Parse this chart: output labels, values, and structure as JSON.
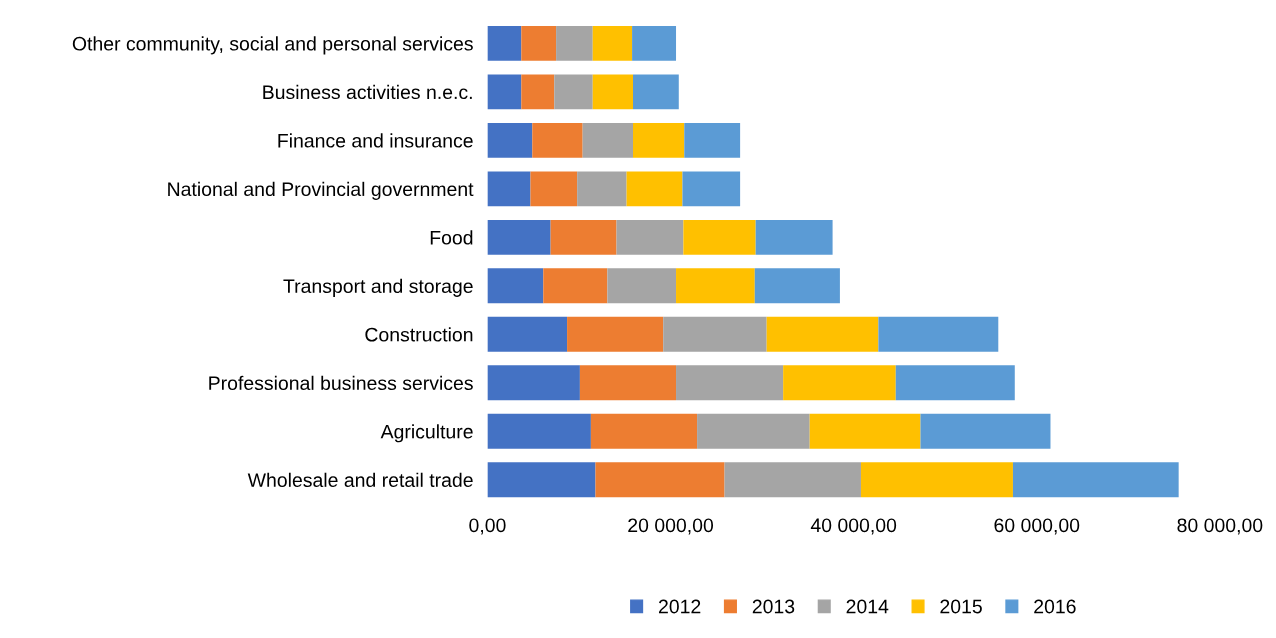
{
  "chart_data": {
    "type": "bar",
    "orientation": "horizontal",
    "stacked": true,
    "categories": [
      "Other community, social and personal services",
      "Business activities n.e.c.",
      "Finance and insurance",
      "National and Provincial government",
      "Food",
      "Transport and storage",
      "Construction",
      "Professional business services",
      "Agriculture",
      "Wholesale and retail trade"
    ],
    "series": [
      {
        "name": "2012",
        "color": "#4472c4",
        "values": [
          3700,
          3700,
          4900,
          4700,
          6900,
          6100,
          8700,
          10100,
          11300,
          11800
        ]
      },
      {
        "name": "2013",
        "color": "#ed7d31",
        "values": [
          3800,
          3600,
          5500,
          5100,
          7200,
          7000,
          10500,
          10500,
          11600,
          14100
        ]
      },
      {
        "name": "2014",
        "color": "#a5a5a5",
        "values": [
          4000,
          4200,
          5500,
          5400,
          7300,
          7500,
          11300,
          11700,
          12300,
          14900
        ]
      },
      {
        "name": "2015",
        "color": "#ffc000",
        "values": [
          4300,
          4400,
          5600,
          6100,
          7900,
          8600,
          12200,
          12300,
          12100,
          16600
        ]
      },
      {
        "name": "2016",
        "color": "#5b9bd5",
        "values": [
          4800,
          5000,
          6100,
          6300,
          8400,
          9300,
          13100,
          13000,
          14200,
          18100
        ]
      }
    ],
    "xlim": [
      0,
      80000
    ],
    "xticks": [
      {
        "value": 0,
        "label": "0,00"
      },
      {
        "value": 20000,
        "label": "20 000,00"
      },
      {
        "value": 40000,
        "label": "40 000,00"
      },
      {
        "value": 60000,
        "label": "60 000,00"
      },
      {
        "value": 80000,
        "label": "80 000,00"
      }
    ],
    "grid": false,
    "legend": "bottom"
  }
}
